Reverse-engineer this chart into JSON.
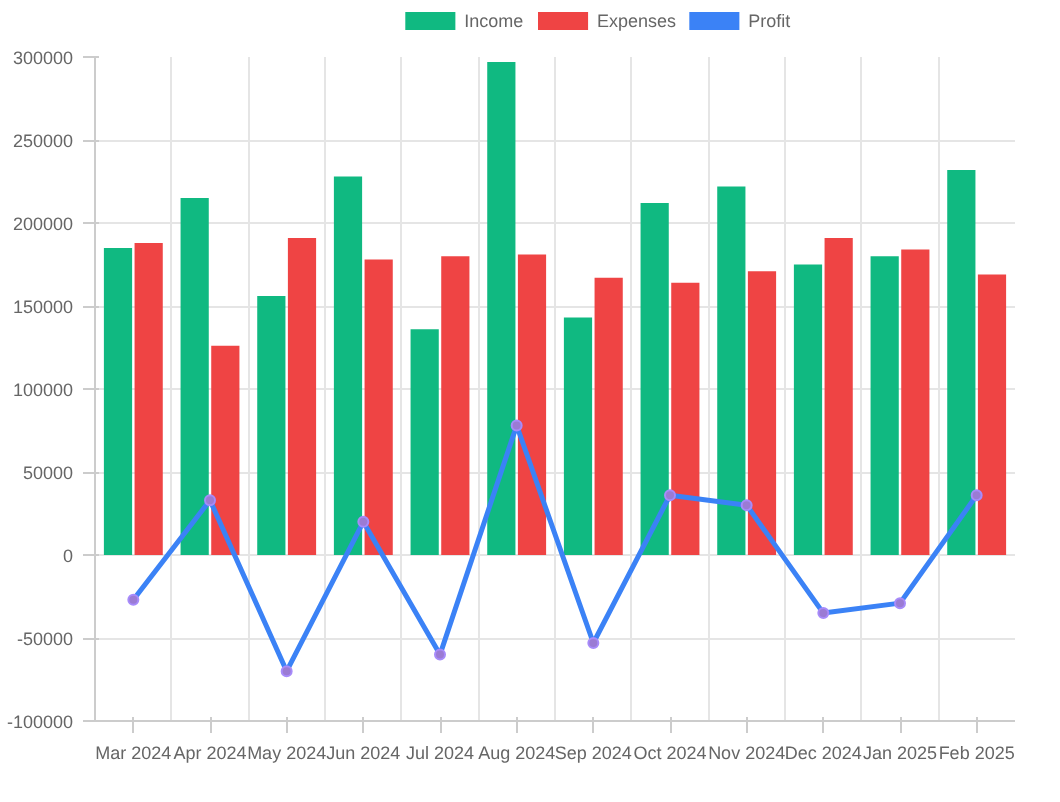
{
  "chart_data": {
    "type": "bar",
    "categories": [
      "Mar 2024",
      "Apr 2024",
      "May 2024",
      "Jun 2024",
      "Jul 2024",
      "Aug 2024",
      "Sep 2024",
      "Oct 2024",
      "Nov 2024",
      "Dec 2024",
      "Jan 2025",
      "Feb 2025"
    ],
    "series": [
      {
        "name": "Income",
        "color": "#10b981",
        "values": [
          185000,
          215000,
          156000,
          228000,
          136000,
          297000,
          143000,
          212000,
          222000,
          175000,
          180000,
          232000
        ]
      },
      {
        "name": "Expenses",
        "color": "#ef4444",
        "values": [
          188000,
          126000,
          191000,
          178000,
          180000,
          181000,
          167000,
          164000,
          171000,
          191000,
          184000,
          169000
        ]
      },
      {
        "name": "Profit",
        "type": "line",
        "color": "#3b82f6",
        "marker": "circle",
        "values": [
          -27000,
          33000,
          -70000,
          20000,
          -60000,
          78000,
          -53000,
          36000,
          30000,
          -35000,
          -29000,
          36000
        ]
      }
    ],
    "ylim": [
      -100000,
      300000
    ],
    "yticks": [
      -100000,
      -50000,
      0,
      50000,
      100000,
      150000,
      200000,
      250000,
      300000
    ],
    "grid": true,
    "legend": "top"
  }
}
